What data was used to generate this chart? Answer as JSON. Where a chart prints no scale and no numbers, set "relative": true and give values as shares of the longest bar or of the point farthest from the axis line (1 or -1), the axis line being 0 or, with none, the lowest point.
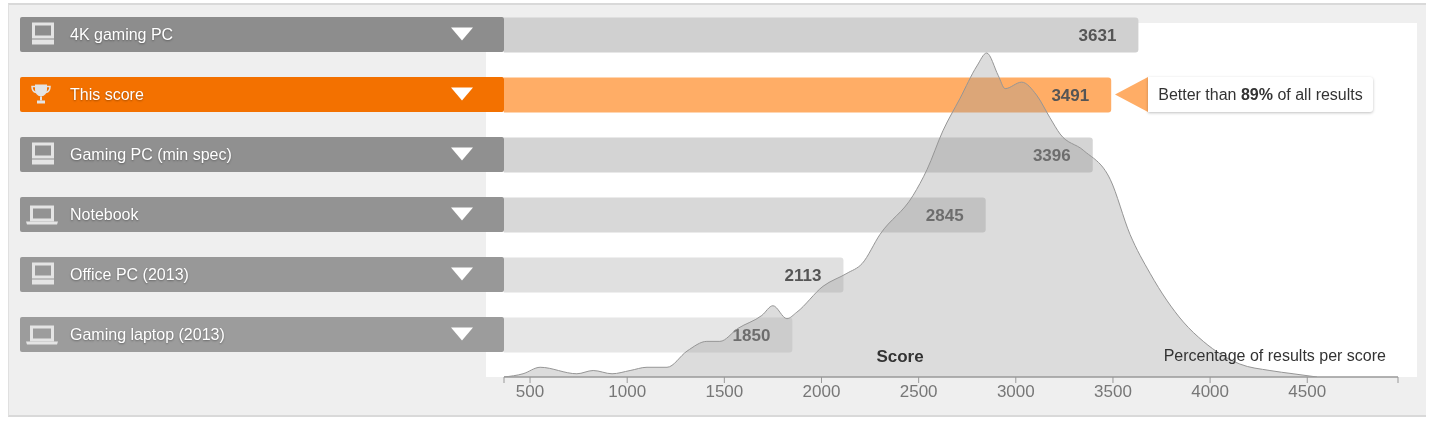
{
  "chart_data": [
    {
      "type": "bar",
      "orientation": "horizontal",
      "categories": [
        "4K gaming PC",
        "This score",
        "Gaming PC (min spec)",
        "Notebook",
        "Office PC (2013)",
        "Gaming laptop (2013)"
      ],
      "values": [
        3631,
        3491,
        3396,
        2845,
        2113,
        1850
      ],
      "colors": [
        "#d0d0d0",
        "#ffad66",
        "#d4d4d4",
        "#d8d8d8",
        "#e0e0e0",
        "#e6e6e6"
      ],
      "xlim": [
        366,
        4967
      ],
      "tick_labels": "y",
      "data_labels": true,
      "annotations": [
        {
          "text": "Better than 89% of all results",
          "x": 3491,
          "y": "This score"
        }
      ]
    },
    {
      "type": "area",
      "x": [
        366,
        464,
        552,
        741,
        825,
        922,
        1015,
        1102,
        1205,
        1308,
        1410,
        1477,
        1570,
        1693,
        1750,
        1822,
        1873,
        2008,
        2131,
        2209,
        2301,
        2471,
        2543,
        2625,
        2713,
        2800,
        2850,
        2910,
        2945,
        3030,
        3107,
        3176,
        3228,
        3347,
        3486,
        3588,
        3691,
        3862,
        3965,
        4153,
        4308,
        4427,
        4550
      ],
      "values": [
        0,
        0.01,
        0.03,
        0.01,
        0.02,
        0.01,
        0.02,
        0.03,
        0.03,
        0.08,
        0.11,
        0.11,
        0.15,
        0.19,
        0.22,
        0.18,
        0.2,
        0.28,
        0.32,
        0.35,
        0.44,
        0.56,
        0.64,
        0.76,
        0.86,
        0.96,
        1,
        0.93,
        0.89,
        0.91,
        0.87,
        0.8,
        0.75,
        0.7,
        0.61,
        0.44,
        0.32,
        0.17,
        0.11,
        0.04,
        0.02,
        0.01,
        0
      ],
      "color": "#dcdcdc",
      "relative": true,
      "xlim": [
        366,
        4967
      ],
      "xticks": [
        {
          "value": 366,
          "label": null
        },
        500,
        1000,
        1500,
        2000,
        2500,
        3000,
        3500,
        4000,
        4500,
        {
          "value": 4967,
          "label": null
        }
      ],
      "xlabel": "Score",
      "ylabel": "Percentage of results per score"
    }
  ]
}
